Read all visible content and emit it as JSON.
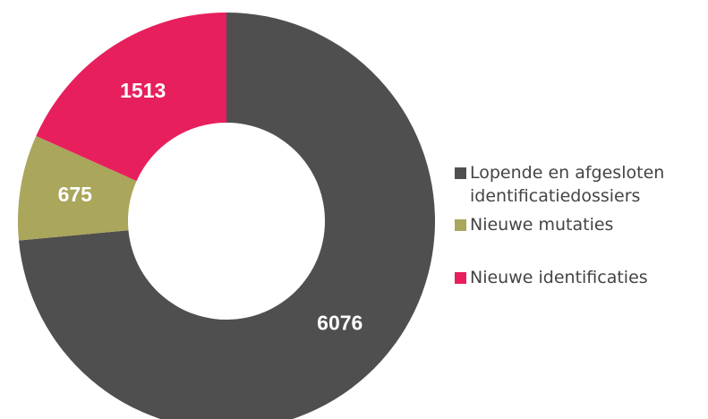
{
  "chart_data": {
    "type": "donut",
    "categories": [
      "Lopende en afgesloten identificatiedossiers",
      "Nieuwe mutaties",
      "Nieuwe identificaties"
    ],
    "values": [
      6076,
      675,
      1513
    ],
    "colors": [
      "#4f4f4f",
      "#aaa65c",
      "#e71f5d"
    ]
  }
}
